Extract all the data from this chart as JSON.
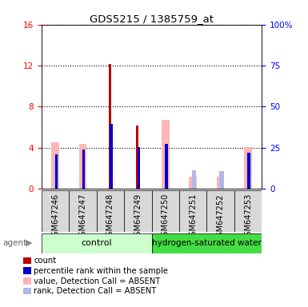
{
  "title": "GDS5215 / 1385759_at",
  "samples": [
    "GSM647246",
    "GSM647247",
    "GSM647248",
    "GSM647249",
    "GSM647250",
    "GSM647251",
    "GSM647252",
    "GSM647253"
  ],
  "count_values": [
    0,
    0,
    12.2,
    6.2,
    0,
    0,
    0,
    0
  ],
  "rank_values": [
    3.4,
    3.8,
    6.3,
    4.1,
    4.4,
    0,
    0,
    3.5
  ],
  "value_absent": [
    4.5,
    4.4,
    0,
    0,
    6.7,
    1.2,
    1.2,
    4.1
  ],
  "rank_absent": [
    3.3,
    0,
    0,
    0,
    0,
    1.8,
    1.7,
    3.3
  ],
  "ylim_left": [
    0,
    16
  ],
  "ylim_right": [
    0,
    100
  ],
  "yticks_left": [
    0,
    4,
    8,
    12,
    16
  ],
  "yticks_right": [
    0,
    25,
    50,
    75,
    100
  ],
  "ytick_right_labels": [
    "0",
    "25",
    "50",
    "75",
    "100%"
  ],
  "bar_colors": {
    "count": "#bb0000",
    "rank": "#0000cc",
    "value_absent": "#ffb6b6",
    "rank_absent": "#b0b8e8"
  },
  "legend_items": [
    {
      "color": "#bb0000",
      "label": "count"
    },
    {
      "color": "#0000cc",
      "label": "percentile rank within the sample"
    },
    {
      "color": "#ffb6b6",
      "label": "value, Detection Call = ABSENT"
    },
    {
      "color": "#b0b8e8",
      "label": "rank, Detection Call = ABSENT"
    }
  ]
}
